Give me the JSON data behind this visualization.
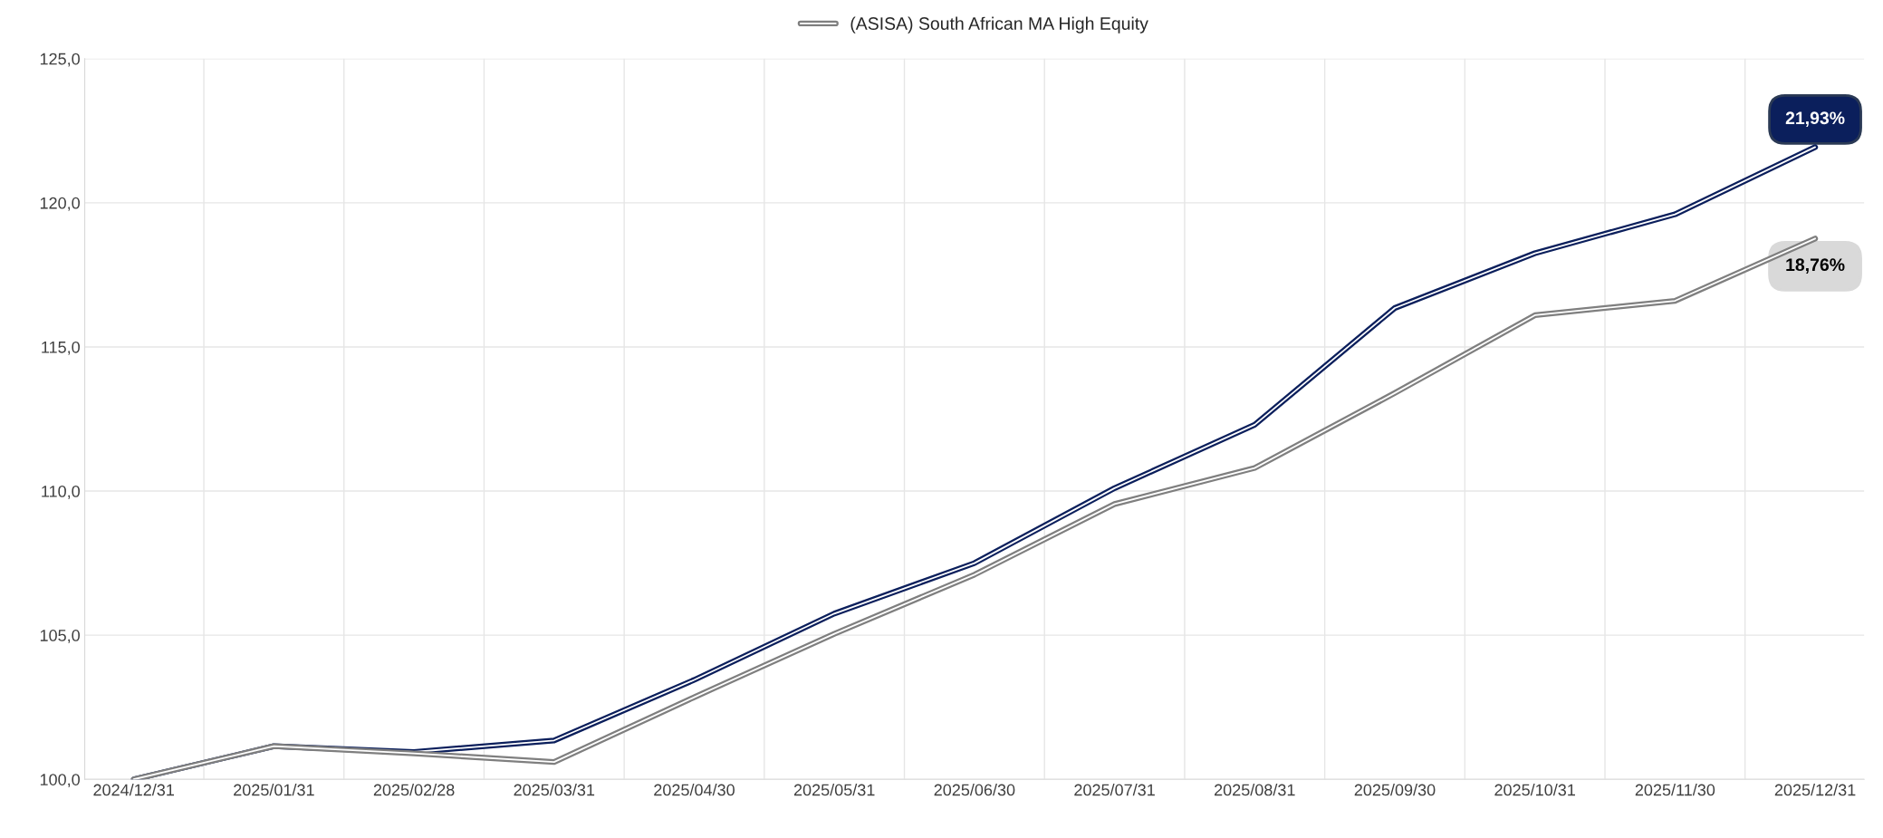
{
  "chart_data": {
    "type": "line",
    "categories": [
      "2024/12/31",
      "2025/01/31",
      "2025/02/28",
      "2025/03/31",
      "2025/04/30",
      "2025/05/31",
      "2025/06/30",
      "2025/07/31",
      "2025/08/31",
      "2025/09/30",
      "2025/10/31",
      "2025/11/30",
      "2025/12/31"
    ],
    "series": [
      {
        "color": "#0b1f5c",
        "values": [
          100,
          101.15,
          100.95,
          101.35,
          103.45,
          105.75,
          107.5,
          110.1,
          112.3,
          116.35,
          118.25,
          119.6,
          121.93
        ]
      },
      {
        "name": "(ASISA) South African MA High Equity",
        "color": "#7f7f7f",
        "values": [
          100,
          101.15,
          100.9,
          100.6,
          102.85,
          105.05,
          107.1,
          109.55,
          110.8,
          113.4,
          116.1,
          116.6,
          118.76
        ]
      }
    ],
    "ylim": [
      100,
      125
    ],
    "yticks": [
      {
        "value": 100,
        "label": "100,0"
      },
      {
        "value": 105,
        "label": "105,0"
      },
      {
        "value": 110,
        "label": "110,0"
      },
      {
        "value": 115,
        "label": "115,0"
      },
      {
        "value": 120,
        "label": "120,0"
      },
      {
        "value": 125,
        "label": "125,0"
      }
    ],
    "annotations": [
      {
        "text": "21,93%",
        "x": "2025/12/31",
        "y": 121.93
      },
      {
        "text": "18,76%",
        "x": "2025/12/31",
        "y": 118.76
      }
    ],
    "grid": true,
    "legend": "top",
    "marker": "none",
    "line_style": "solid"
  }
}
